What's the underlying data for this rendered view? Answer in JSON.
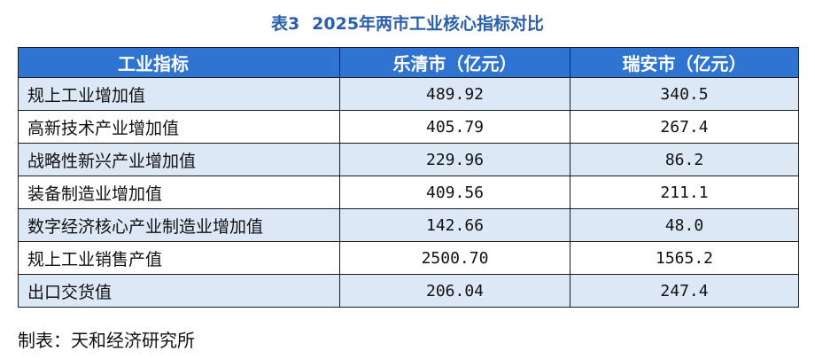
{
  "caption": {
    "number": "表3",
    "title": "2025年两市工业核心指标对比"
  },
  "table": {
    "headers": [
      "工业指标",
      "乐清市（亿元）",
      "瑞安市（亿元）"
    ],
    "rows": [
      {
        "indicator": "规上工业增加值",
        "yueqing": "489.92",
        "ruian": "340.5"
      },
      {
        "indicator": "高新技术产业增加值",
        "yueqing": "405.79",
        "ruian": "267.4"
      },
      {
        "indicator": "战略性新兴产业增加值",
        "yueqing": "229.96",
        "ruian": "86.2"
      },
      {
        "indicator": "装备制造业增加值",
        "yueqing": "409.56",
        "ruian": "211.1"
      },
      {
        "indicator": "数字经济核心产业制造业增加值",
        "yueqing": "142.66",
        "ruian": "48.0"
      },
      {
        "indicator": "规上工业销售产值",
        "yueqing": "2500.70",
        "ruian": "1565.2"
      },
      {
        "indicator": "出口交货值",
        "yueqing": "206.04",
        "ruian": "247.4"
      }
    ]
  },
  "source": "制表：天和经济研究所",
  "colors": {
    "caption": "#2a5faa",
    "header_bg": "#2e74d0",
    "stripe_bg": "#dde8f6"
  }
}
